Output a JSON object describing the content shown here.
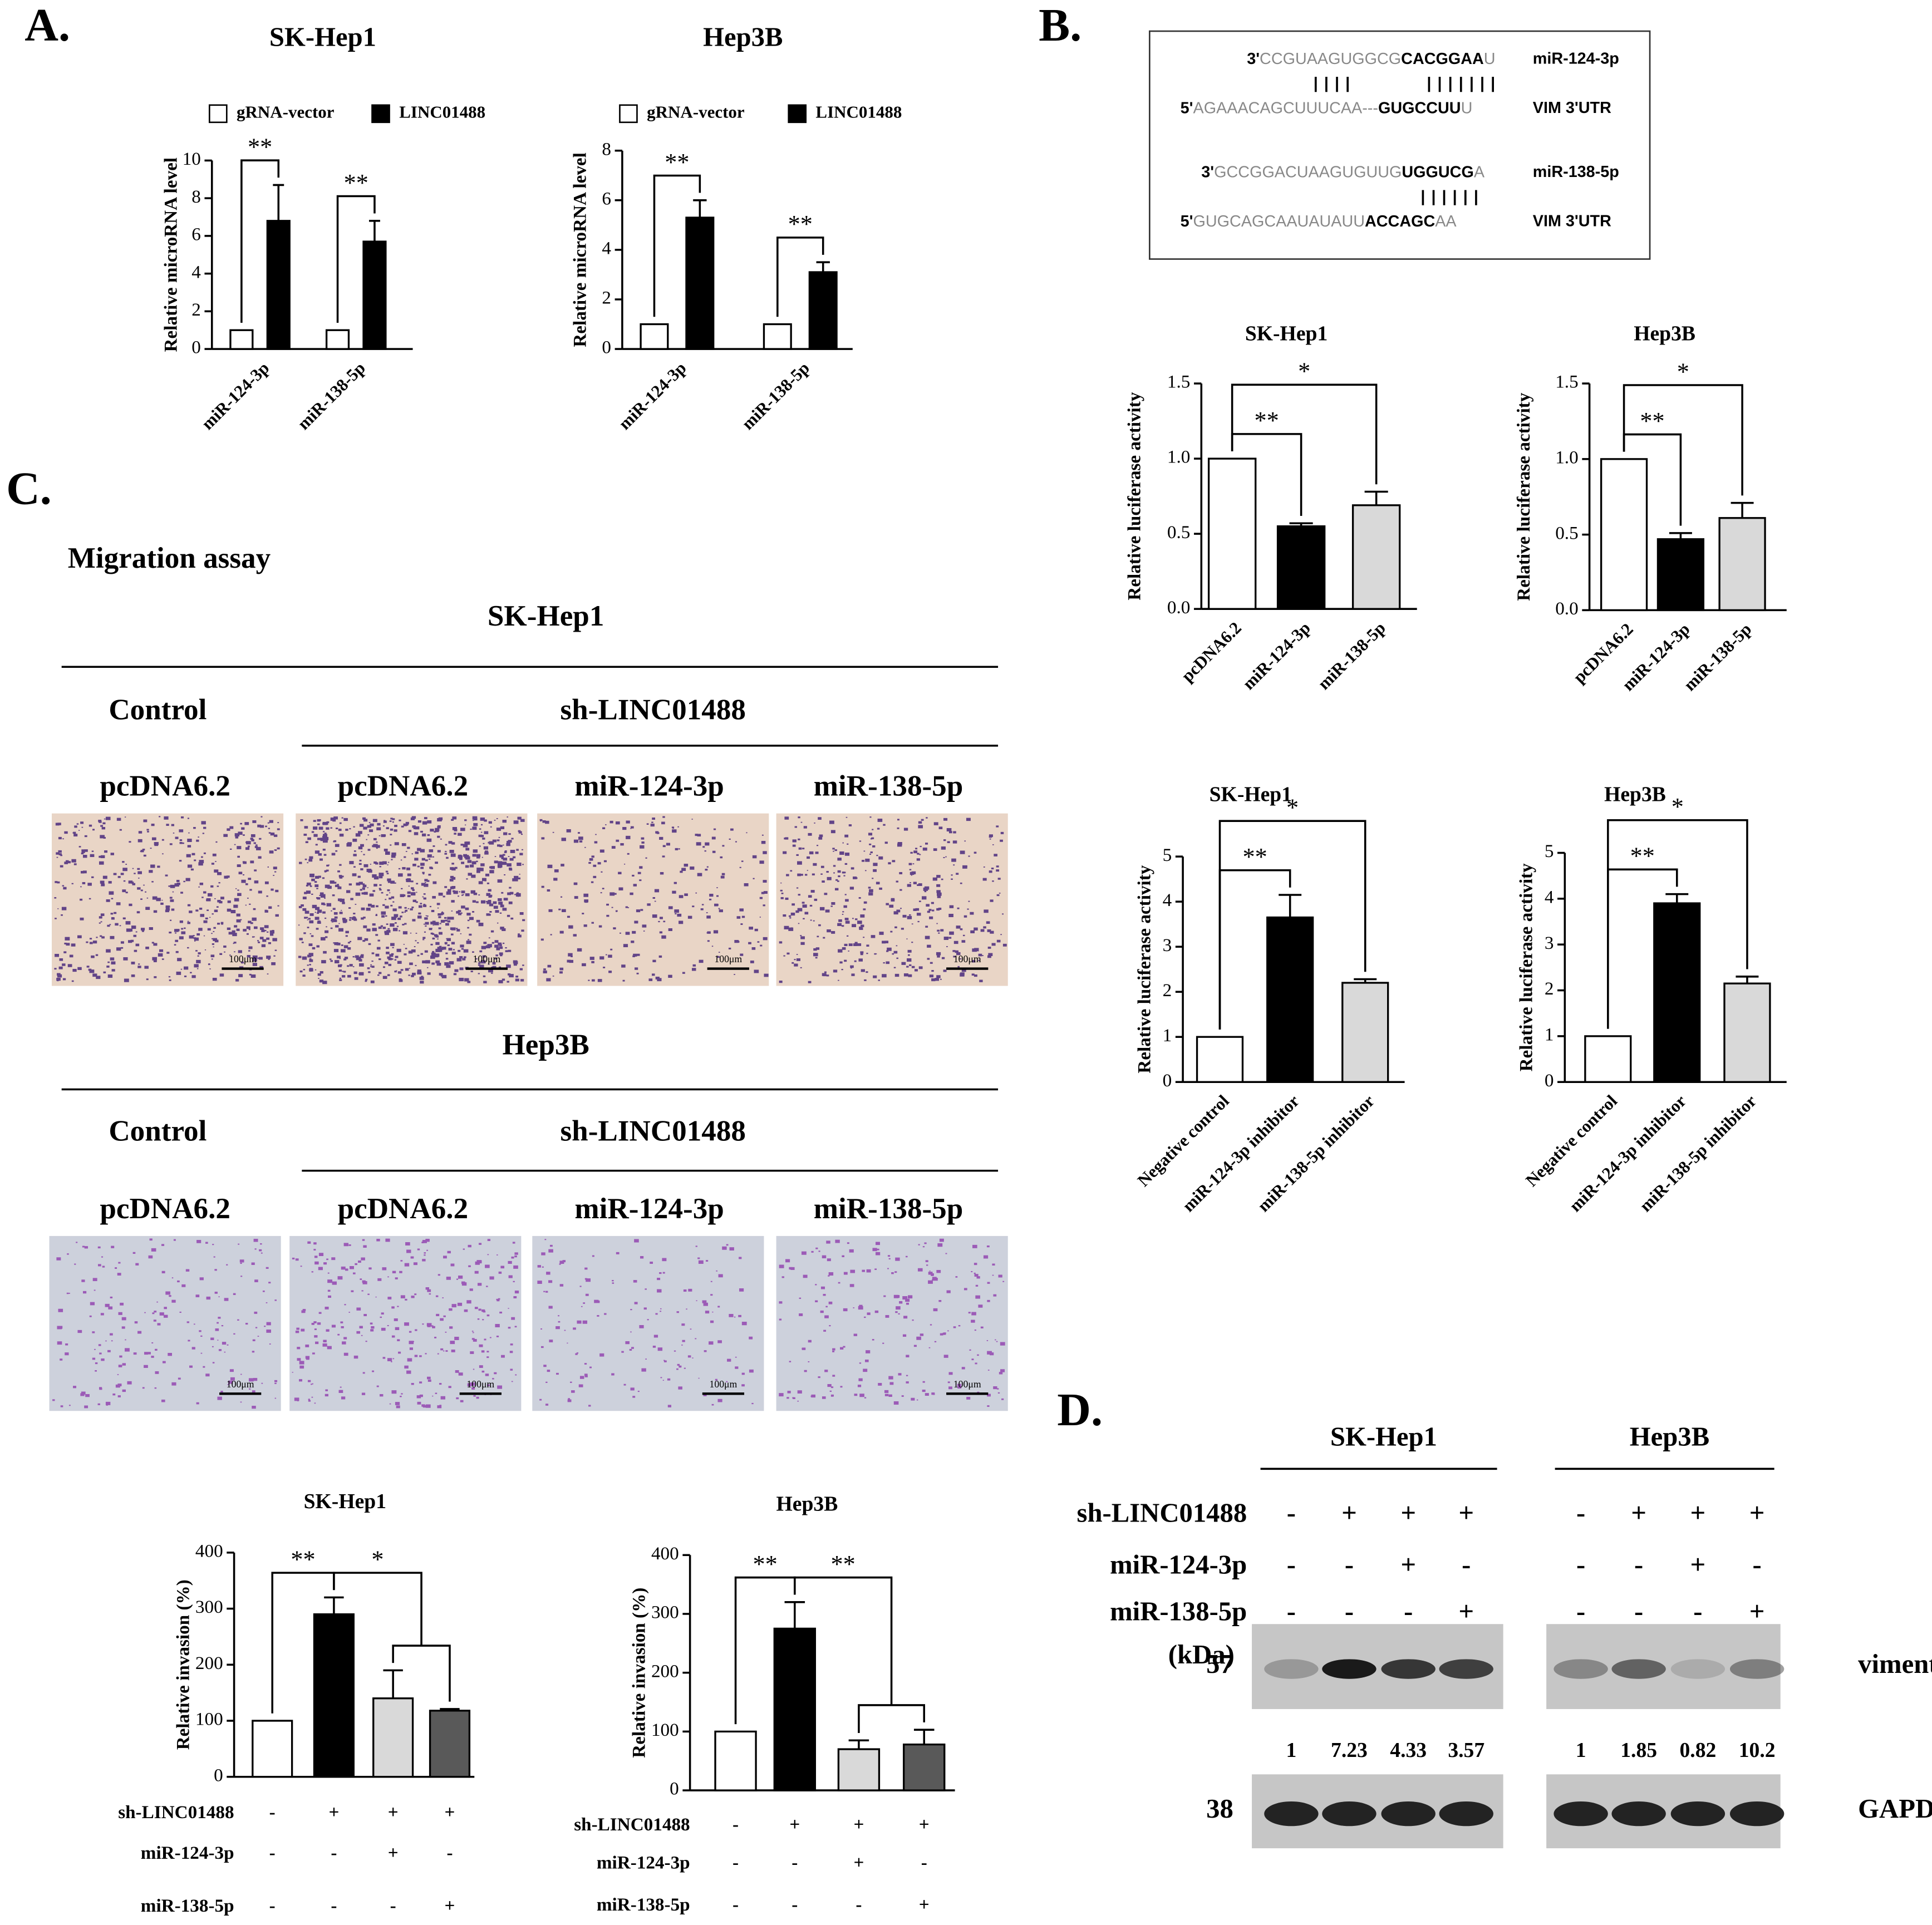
{
  "panel_labels": [
    "A.",
    "B.",
    "C.",
    "D."
  ],
  "chart_data": [
    {
      "type": "bar",
      "title": "SK-Hep1",
      "y_label": "Relative microRNA level",
      "categories": [
        "miR-124-3p",
        "miR-138-5p"
      ],
      "series": [
        {
          "name": "gRNA-vector",
          "color": "#ffffff",
          "values": [
            1,
            1
          ]
        },
        {
          "name": "LINC01488",
          "color": "#000000",
          "values": [
            6.8,
            5.7
          ],
          "errors": [
            1.9,
            1.1
          ]
        }
      ],
      "ylim": [
        0,
        10
      ],
      "yticks": [
        0,
        2,
        4,
        6,
        8,
        10
      ],
      "significance": [
        {
          "label": "**",
          "category": 0
        },
        {
          "label": "**",
          "category": 1
        }
      ]
    },
    {
      "type": "bar",
      "title": "Hep3B",
      "y_label": "Relative microRNA level",
      "categories": [
        "miR-124-3p",
        "miR-138-5p"
      ],
      "series": [
        {
          "name": "gRNA-vector",
          "color": "#ffffff",
          "values": [
            1,
            1
          ]
        },
        {
          "name": "LINC01488",
          "color": "#000000",
          "values": [
            5.3,
            3.1
          ],
          "errors": [
            0.7,
            0.4
          ]
        }
      ],
      "ylim": [
        0,
        8
      ],
      "yticks": [
        0,
        2,
        4,
        6,
        8
      ],
      "significance": [
        {
          "label": "**",
          "category": 0
        },
        {
          "label": "**",
          "category": 1
        }
      ]
    },
    {
      "type": "bar",
      "title": "SK-Hep1",
      "y_label": "Relative luciferase activity",
      "categories": [
        "pcDNA6.2",
        "miR-124-3p",
        "miR-138-5p"
      ],
      "values": [
        1.0,
        0.55,
        0.69
      ],
      "errors": [
        null,
        0.02,
        0.09
      ],
      "colors": [
        "#ffffff",
        "#000000",
        "#d9d9d9"
      ],
      "ylim": [
        0,
        1.5
      ],
      "yticks": [
        {
          "value": 0,
          "label": "0.0"
        },
        0.5,
        {
          "value": 1,
          "label": "1.0"
        },
        1.5
      ],
      "significance": [
        {
          "label": "**",
          "bars": [
            0,
            1
          ]
        },
        {
          "label": "*",
          "bars": [
            0,
            2
          ]
        }
      ]
    },
    {
      "type": "bar",
      "title": "Hep3B",
      "y_label": "Relative luciferase activity",
      "categories": [
        "pcDNA6.2",
        "miR-124-3p",
        "miR-138-5p"
      ],
      "values": [
        1.0,
        0.47,
        0.61
      ],
      "errors": [
        null,
        0.04,
        0.1
      ],
      "colors": [
        "#ffffff",
        "#000000",
        "#d9d9d9"
      ],
      "ylim": [
        0,
        1.5
      ],
      "yticks": [
        {
          "value": 0,
          "label": "0.0"
        },
        0.5,
        {
          "value": 1,
          "label": "1.0"
        },
        1.5
      ],
      "significance": [
        {
          "label": "**",
          "bars": [
            0,
            1
          ]
        },
        {
          "label": "*",
          "bars": [
            0,
            2
          ]
        }
      ]
    },
    {
      "type": "bar",
      "title": "SK-Hep1",
      "y_label": "Relative luciferase activity",
      "categories": [
        "Negative control",
        "miR-124-3p inhibitor",
        "miR-138-5p inhibitor"
      ],
      "values": [
        1,
        3.65,
        2.2
      ],
      "errors": [
        null,
        0.5,
        0.08
      ],
      "colors": [
        "#ffffff",
        "#000000",
        "#d9d9d9"
      ],
      "ylim": [
        0,
        5
      ],
      "yticks": [
        0,
        1,
        2,
        3,
        4,
        5
      ],
      "significance": [
        {
          "label": "**",
          "bars": [
            0,
            1
          ]
        },
        {
          "label": "*",
          "bars": [
            0,
            2
          ]
        }
      ]
    },
    {
      "type": "bar",
      "title": "Hep3B",
      "y_label": "Relative luciferase activity",
      "categories": [
        "Negative control",
        "miR-124-3p inhibitor",
        "miR-138-5p inhibitor"
      ],
      "values": [
        1,
        3.9,
        2.15
      ],
      "errors": [
        null,
        0.2,
        0.15
      ],
      "colors": [
        "#ffffff",
        "#000000",
        "#d9d9d9"
      ],
      "ylim": [
        0,
        5
      ],
      "yticks": [
        0,
        1,
        2,
        3,
        4,
        5
      ],
      "significance": [
        {
          "label": "**",
          "bars": [
            0,
            1
          ]
        },
        {
          "label": "*",
          "bars": [
            0,
            2
          ]
        }
      ]
    },
    {
      "type": "bar",
      "title": "SK-Hep1",
      "y_label": "Relative invasion (%)",
      "values": [
        100,
        290,
        140,
        118
      ],
      "errors": [
        null,
        30,
        50,
        3
      ],
      "colors": [
        "#ffffff",
        "#000000",
        "#d9d9d9",
        "#595959"
      ],
      "ylim": [
        0,
        400
      ],
      "yticks": [
        0,
        100,
        200,
        300,
        400
      ],
      "conditions": [
        {
          "name": "sh-LINC01488",
          "signs": [
            "-",
            "+",
            "+",
            "+"
          ]
        },
        {
          "name": "miR-124-3p",
          "signs": [
            "-",
            "-",
            "+",
            "-"
          ]
        },
        {
          "name": "miR-138-5p",
          "signs": [
            "-",
            "-",
            "-",
            "+"
          ]
        }
      ],
      "significance": [
        {
          "label": "**",
          "bars": [
            0,
            1
          ]
        },
        {
          "label": "*",
          "bars": [
            1,
            [
              2,
              3
            ]
          ]
        }
      ]
    },
    {
      "type": "bar",
      "title": "Hep3B",
      "y_label": "Relative invasion (%)",
      "values": [
        100,
        275,
        70,
        78
      ],
      "errors": [
        null,
        45,
        15,
        25
      ],
      "colors": [
        "#ffffff",
        "#000000",
        "#d9d9d9",
        "#595959"
      ],
      "ylim": [
        0,
        400
      ],
      "yticks": [
        0,
        100,
        200,
        300,
        400
      ],
      "conditions": [
        {
          "name": "sh-LINC01488",
          "signs": [
            "-",
            "+",
            "+",
            "+"
          ]
        },
        {
          "name": "miR-124-3p",
          "signs": [
            "-",
            "-",
            "+",
            "-"
          ]
        },
        {
          "name": "miR-138-5p",
          "signs": [
            "-",
            "-",
            "-",
            "+"
          ]
        }
      ],
      "significance": [
        {
          "label": "**",
          "bars": [
            0,
            1
          ]
        },
        {
          "label": "**",
          "bars": [
            1,
            [
              2,
              3
            ]
          ]
        }
      ]
    }
  ],
  "alignment": {
    "lines": [
      {
        "end": "3'",
        "parts": [
          "CCGUAAGUGGCG",
          "CACGGAA",
          "U"
        ],
        "name": "miR-124-3p"
      },
      {
        "end": "5'",
        "parts": [
          "AGAAACAGCUUUCAA---",
          "GUGCCUU",
          "U"
        ],
        "name": "VIM 3'UTR"
      },
      {
        "end": "3'",
        "parts": [
          "GCCGGACUAAGUGUUG",
          "UGGUCG",
          "A"
        ],
        "name": "miR-138-5p"
      },
      {
        "end": "5'",
        "parts": [
          "GUGCAGCAAUAUAUU",
          "ACCAGC",
          "AA"
        ],
        "name": "VIM 3'UTR"
      }
    ],
    "pairs": [
      "||||",
      "|||||||",
      "||||||"
    ]
  },
  "migration": {
    "title": "Migration assay",
    "groups": [
      {
        "cell": "SK-Hep1",
        "control": "Control",
        "treatment": "sh-LINC01488",
        "columns": [
          "pcDNA6.2",
          "pcDNA6.2",
          "miR-124-3p",
          "miR-138-5p"
        ]
      },
      {
        "cell": "Hep3B",
        "control": "Control",
        "treatment": "sh-LINC01488",
        "columns": [
          "pcDNA6.2",
          "pcDNA6.2",
          "miR-124-3p",
          "miR-138-5p"
        ]
      }
    ],
    "scale_bar": "100μm"
  },
  "western_blot": {
    "row_labels": [
      "sh-LINC01488",
      "miR-124-3p",
      "miR-138-5p"
    ],
    "unit": "(kDa)",
    "groups": [
      {
        "cell": "SK-Hep1",
        "rows": [
          [
            "-",
            "+",
            "+",
            "+"
          ],
          [
            "-",
            "-",
            "+",
            "-"
          ],
          [
            "-",
            "-",
            "-",
            "+"
          ]
        ],
        "quantification": [
          1,
          7.23,
          4.33,
          3.57
        ]
      },
      {
        "cell": "Hep3B",
        "rows": [
          [
            "-",
            "+",
            "+",
            "+"
          ],
          [
            "-",
            "-",
            "+",
            "-"
          ],
          [
            "-",
            "-",
            "-",
            "+"
          ]
        ],
        "quantification": [
          1,
          1.85,
          0.82,
          10.2
        ]
      }
    ],
    "bands": [
      {
        "size": 57,
        "name": "vimentin"
      },
      {
        "size": 38,
        "name": "GAPDH"
      }
    ]
  }
}
